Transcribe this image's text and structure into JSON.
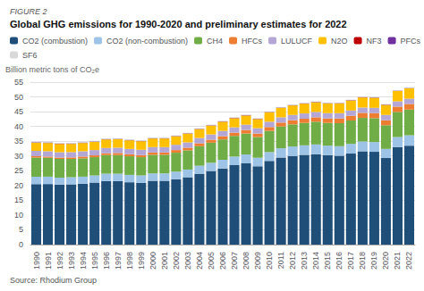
{
  "chart_data": {
    "type": "bar",
    "subtitle": "FIGURE 2",
    "title": "Global GHG emissions for 1990-2020 and preliminary estimates for 2022",
    "ylabel": "Billion metric tons of CO₂e",
    "annotations": [
      "Source: Rhodium Group"
    ],
    "categories": [
      "1990",
      "1991",
      "1992",
      "1993",
      "1994",
      "1995",
      "1996",
      "1997",
      "1998",
      "1999",
      "2000",
      "2001",
      "2002",
      "2003",
      "2004",
      "2005",
      "2006",
      "2007",
      "2008",
      "2009",
      "2010",
      "2011",
      "2012",
      "2013",
      "2014",
      "2015",
      "2016",
      "2017",
      "2018",
      "2019",
      "2020",
      "2021",
      "2022"
    ],
    "series": [
      {
        "name": "CO2 (combustion)",
        "color": "#1f4e79",
        "values": [
          20.5,
          20.5,
          20.3,
          20.4,
          20.6,
          21.0,
          21.5,
          21.5,
          21.1,
          20.9,
          21.6,
          21.6,
          22.1,
          22.8,
          24.0,
          24.9,
          25.8,
          26.9,
          27.5,
          26.5,
          28.3,
          29.5,
          30.0,
          30.4,
          30.6,
          30.3,
          30.1,
          30.8,
          31.6,
          31.4,
          29.3,
          33.0,
          33.5
        ]
      },
      {
        "name": "CO2 (non-combustion)",
        "color": "#9dc3e6",
        "values": [
          2.5,
          2.5,
          2.4,
          2.4,
          2.4,
          2.4,
          2.5,
          2.5,
          2.5,
          2.5,
          2.5,
          2.5,
          2.6,
          2.6,
          2.7,
          2.8,
          2.9,
          2.9,
          3.0,
          2.9,
          3.0,
          3.1,
          3.2,
          3.2,
          3.3,
          3.2,
          3.2,
          3.3,
          3.3,
          3.3,
          3.1,
          3.4,
          3.5
        ]
      },
      {
        "name": "CH4",
        "color": "#70ad47",
        "values": [
          6.5,
          6.4,
          6.3,
          6.2,
          6.2,
          6.2,
          6.3,
          6.3,
          6.3,
          6.2,
          6.3,
          6.3,
          6.4,
          6.5,
          6.6,
          6.8,
          6.9,
          7.0,
          7.1,
          7.0,
          7.2,
          7.4,
          7.5,
          7.6,
          7.7,
          7.7,
          7.8,
          7.9,
          8.0,
          8.1,
          8.0,
          8.5,
          8.7
        ]
      },
      {
        "name": "HFCs",
        "color": "#ed7d31",
        "values": [
          0.4,
          0.4,
          0.5,
          0.5,
          0.6,
          0.6,
          0.6,
          0.7,
          0.7,
          0.7,
          0.8,
          0.8,
          0.9,
          0.9,
          1.0,
          1.0,
          1.1,
          1.1,
          1.2,
          1.2,
          1.3,
          1.3,
          1.4,
          1.4,
          1.5,
          1.5,
          1.6,
          1.6,
          1.7,
          1.7,
          1.7,
          1.8,
          1.9
        ]
      },
      {
        "name": "LULUCF",
        "color": "#b4a7d6",
        "values": [
          1.8,
          1.8,
          1.8,
          1.8,
          1.8,
          1.8,
          1.8,
          1.8,
          1.8,
          1.8,
          1.8,
          1.8,
          1.8,
          1.8,
          1.8,
          1.8,
          1.8,
          1.8,
          1.8,
          1.8,
          1.8,
          1.8,
          1.8,
          1.8,
          1.8,
          1.8,
          1.8,
          1.8,
          1.8,
          1.8,
          1.8,
          1.8,
          1.8
        ]
      },
      {
        "name": "N2O",
        "color": "#ffc000",
        "values": [
          2.8,
          2.8,
          2.8,
          2.8,
          2.8,
          2.8,
          2.9,
          2.9,
          2.9,
          2.9,
          2.9,
          2.9,
          2.9,
          3.0,
          3.0,
          3.0,
          3.1,
          3.1,
          3.1,
          3.1,
          3.2,
          3.2,
          3.2,
          3.3,
          3.3,
          3.3,
          3.3,
          3.4,
          3.4,
          3.4,
          3.4,
          3.5,
          3.5
        ]
      },
      {
        "name": "NF3",
        "color": "#c00000",
        "values": [
          0.02,
          0.02,
          0.02,
          0.02,
          0.02,
          0.02,
          0.02,
          0.02,
          0.03,
          0.03,
          0.03,
          0.03,
          0.03,
          0.03,
          0.04,
          0.04,
          0.04,
          0.05,
          0.05,
          0.05,
          0.05,
          0.05,
          0.05,
          0.05,
          0.05,
          0.05,
          0.05,
          0.05,
          0.05,
          0.05,
          0.05,
          0.05,
          0.05
        ]
      },
      {
        "name": "PFCs",
        "color": "#7030a0",
        "values": [
          0.15,
          0.15,
          0.14,
          0.14,
          0.13,
          0.12,
          0.12,
          0.11,
          0.11,
          0.1,
          0.1,
          0.1,
          0.09,
          0.09,
          0.09,
          0.09,
          0.09,
          0.09,
          0.09,
          0.08,
          0.08,
          0.08,
          0.08,
          0.08,
          0.08,
          0.08,
          0.08,
          0.08,
          0.08,
          0.08,
          0.08,
          0.08,
          0.08
        ]
      },
      {
        "name": "SF6",
        "color": "#d9d9d9",
        "values": [
          0.2,
          0.2,
          0.19,
          0.19,
          0.18,
          0.18,
          0.18,
          0.18,
          0.17,
          0.17,
          0.17,
          0.17,
          0.16,
          0.16,
          0.16,
          0.16,
          0.16,
          0.16,
          0.16,
          0.15,
          0.15,
          0.15,
          0.15,
          0.15,
          0.15,
          0.15,
          0.15,
          0.15,
          0.15,
          0.15,
          0.15,
          0.15,
          0.15
        ]
      }
    ],
    "stacked": true,
    "ylim": [
      0,
      55
    ],
    "yticks": [
      0,
      5,
      10,
      15,
      20,
      25,
      30,
      35,
      40,
      45,
      50,
      55
    ],
    "grid": true,
    "legend": "upper left"
  }
}
